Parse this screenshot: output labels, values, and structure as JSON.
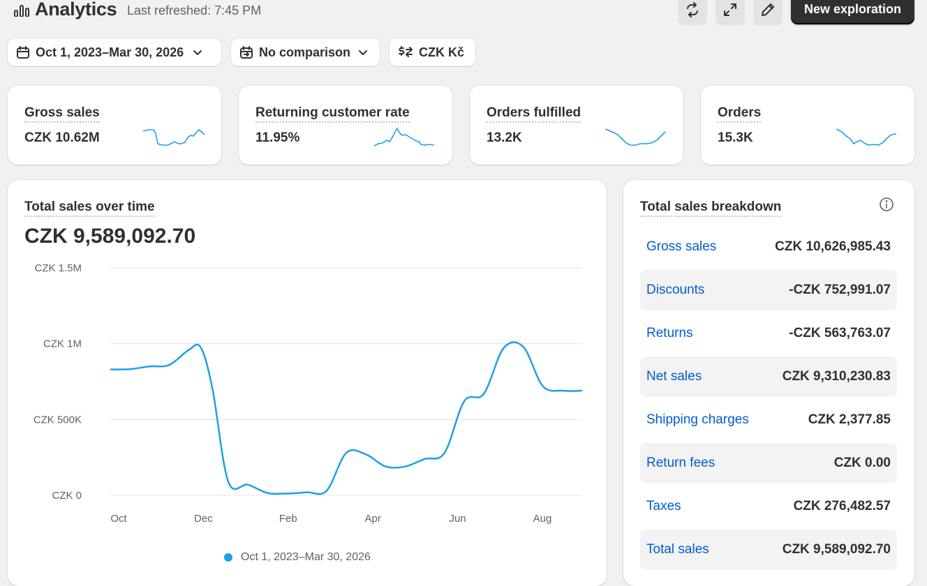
{
  "header": {
    "title": "Analytics",
    "last_refreshed": "Last refreshed: 7:45 PM",
    "new_exploration_label": "New exploration"
  },
  "filters": {
    "date_range": "Oct 1, 2023–Mar 30, 2026",
    "comparison": "No comparison",
    "currency": "CZK Kč"
  },
  "kpis": [
    {
      "label": "Gross sales",
      "value": "CZK 10.62M"
    },
    {
      "label": "Returning customer rate",
      "value": "11.95%"
    },
    {
      "label": "Orders fulfilled",
      "value": "13.2K"
    },
    {
      "label": "Orders",
      "value": "15.3K"
    }
  ],
  "sales_chart": {
    "title": "Total sales over time",
    "total": "CZK 9,589,092.70",
    "legend": "Oct 1, 2023–Mar 30, 2026"
  },
  "breakdown": {
    "title": "Total sales breakdown",
    "rows": [
      {
        "label": "Gross sales",
        "value": "CZK 10,626,985.43"
      },
      {
        "label": "Discounts",
        "value": "-CZK 752,991.07"
      },
      {
        "label": "Returns",
        "value": "-CZK 563,763.07"
      },
      {
        "label": "Net sales",
        "value": "CZK 9,310,230.83"
      },
      {
        "label": "Shipping charges",
        "value": "CZK 2,377.85"
      },
      {
        "label": "Return fees",
        "value": "CZK 0.00"
      },
      {
        "label": "Taxes",
        "value": "CZK 276,482.57"
      },
      {
        "label": "Total sales",
        "value": "CZK 9,589,092.70"
      }
    ]
  },
  "colors": {
    "accent": "#1f9fe6",
    "link": "#005bd3",
    "primary_button": "#303030"
  },
  "chart_data": {
    "type": "line",
    "ylim": [
      0,
      1500000
    ],
    "yticks": [
      {
        "value": 0,
        "label": "CZK 0"
      },
      {
        "value": 500000,
        "label": "CZK 500K"
      },
      {
        "value": 1000000,
        "label": "CZK 1M"
      },
      {
        "value": 1500000,
        "label": "CZK 1.5M"
      }
    ],
    "xticks": [
      "Oct",
      "Dec",
      "Feb",
      "Apr",
      "Jun",
      "Aug"
    ],
    "series": [
      {
        "name": "Oct 1, 2023–Mar 30, 2026",
        "x": [
          0,
          0.5,
          1,
          1.5,
          2,
          2.3,
          2.6,
          3,
          3.5,
          4,
          4.5,
          5,
          5.5,
          6,
          6.5,
          7,
          7.5,
          8,
          8.5,
          9,
          9.5,
          10,
          10.5,
          11,
          11.5,
          12
        ],
        "y": [
          830000,
          832000,
          850000,
          860000,
          960000,
          975000,
          700000,
          90000,
          70000,
          15000,
          12000,
          20000,
          30000,
          280000,
          270000,
          190000,
          190000,
          240000,
          280000,
          620000,
          670000,
          970000,
          980000,
          720000,
          690000,
          690000
        ]
      }
    ]
  }
}
